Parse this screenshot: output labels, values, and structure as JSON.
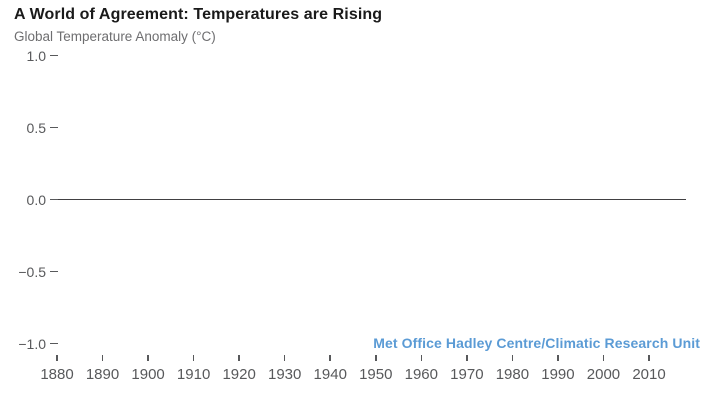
{
  "page": {
    "background": "#ffffff"
  },
  "header": {
    "title": "A World of Agreement: Temperatures are Rising",
    "subtitle": "Global Temperature Anomaly (°C)"
  },
  "attribution": {
    "text": "Met Office Hadley Centre/Climatic Research Unit",
    "color": "#5b9bd5"
  },
  "colors": {
    "title": "#1a1a1a",
    "subtitle": "#6e6e70",
    "axis_text": "#58595b",
    "tick_mark": "#58595b",
    "baseline": "#414042",
    "attribution": "#5b9bd5",
    "background": "#ffffff"
  },
  "chart_data": {
    "type": "line",
    "title": "A World of Agreement: Temperatures are Rising",
    "ylabel": "Global Temperature Anomaly (°C)",
    "xlabel": "",
    "x_ticks": [
      1880,
      1890,
      1900,
      1910,
      1920,
      1930,
      1940,
      1950,
      1960,
      1970,
      1980,
      1990,
      2000,
      2010
    ],
    "y_ticks": [
      1.0,
      0.5,
      0.0,
      -0.5,
      -1.0
    ],
    "y_tick_labels": [
      "1.0",
      "0.5",
      "0.0",
      "−0.5",
      "−1.0"
    ],
    "xlim": [
      1878.5,
      2018
    ],
    "ylim": [
      -1.0,
      1.0
    ],
    "grid": false,
    "legend_position": "none",
    "baseline": 0.0,
    "series": []
  }
}
